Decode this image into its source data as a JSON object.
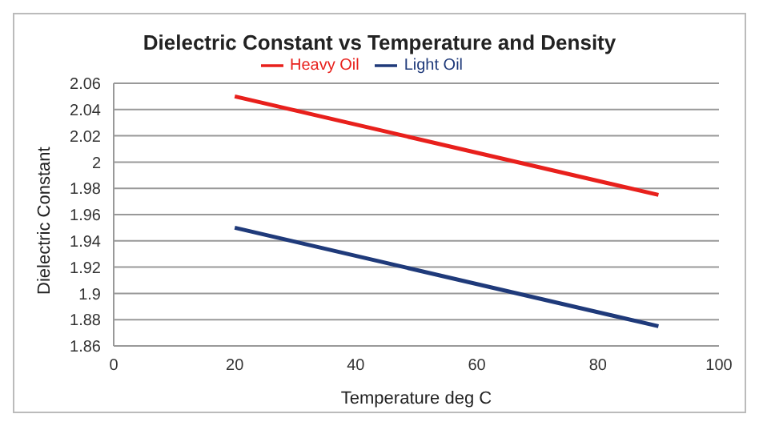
{
  "chart_data": {
    "type": "line",
    "title": "Dielectric Constant  vs Temperature and Density",
    "xlabel": "Temperature deg C",
    "ylabel": "Dielectric Constant",
    "x": [
      20,
      90
    ],
    "series": [
      {
        "name": "Light Oil",
        "color": "#1f3a7a",
        "values": [
          1.95,
          1.875
        ]
      },
      {
        "name": "Heavy Oil",
        "color": "#e8201c",
        "values": [
          2.05,
          1.975
        ]
      }
    ],
    "xlim": [
      0,
      100
    ],
    "xticks": [
      0,
      20,
      40,
      60,
      80,
      100
    ],
    "ylim": [
      1.86,
      2.06
    ],
    "yticks": [
      1.86,
      1.88,
      1.9,
      1.92,
      1.94,
      1.96,
      1.98,
      2,
      2.02,
      2.04,
      2.06
    ],
    "grid": "y",
    "legend": "top",
    "marker": "none",
    "line_style": "solid"
  }
}
